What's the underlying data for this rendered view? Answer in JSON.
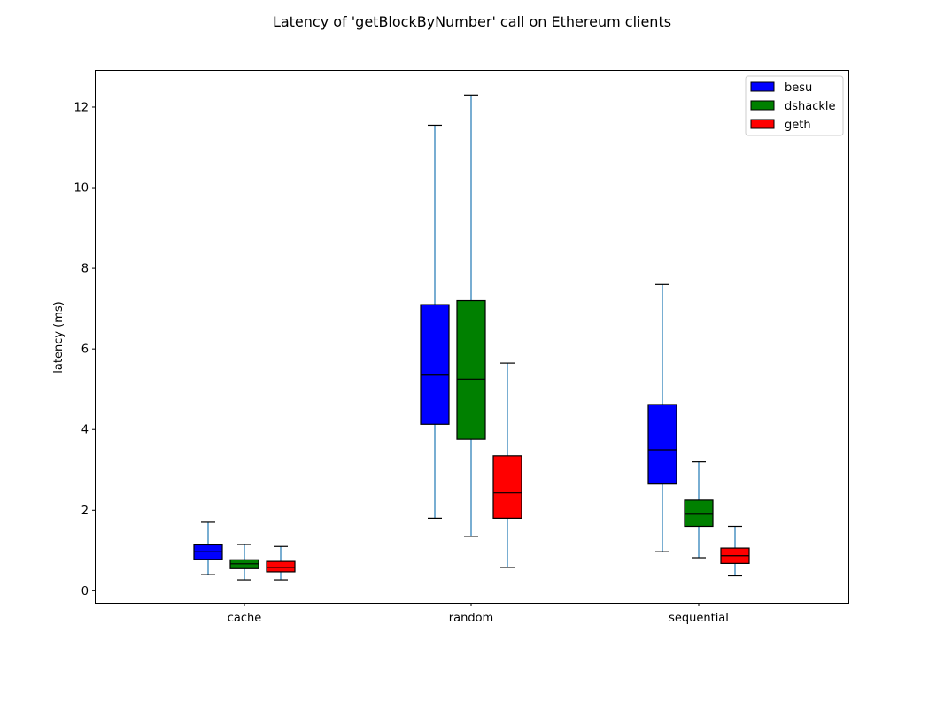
{
  "chart_data": {
    "type": "boxplot",
    "title": "Latency of 'getBlockByNumber' call on Ethereum clients",
    "xlabel": "",
    "ylabel": "latency (ms)",
    "ylim": [
      -0.3,
      12.9
    ],
    "yticks": [
      0,
      2,
      4,
      6,
      8,
      10,
      12
    ],
    "categories": [
      "cache",
      "random",
      "sequential"
    ],
    "grid": false,
    "legend_position": "top-right",
    "whisker_color": "#1f77b4",
    "series": [
      {
        "name": "besu",
        "color": "#0000ff",
        "boxes": [
          {
            "min": 0.4,
            "q1": 0.78,
            "median": 0.97,
            "q3": 1.14,
            "max": 1.7
          },
          {
            "min": 1.8,
            "q1": 4.13,
            "median": 5.35,
            "q3": 7.1,
            "max": 11.55
          },
          {
            "min": 0.97,
            "q1": 2.65,
            "median": 3.5,
            "q3": 4.62,
            "max": 7.6
          }
        ]
      },
      {
        "name": "dshackle",
        "color": "#008000",
        "boxes": [
          {
            "min": 0.27,
            "q1": 0.55,
            "median": 0.67,
            "q3": 0.77,
            "max": 1.15
          },
          {
            "min": 1.35,
            "q1": 3.76,
            "median": 5.25,
            "q3": 7.2,
            "max": 12.3
          },
          {
            "min": 0.82,
            "q1": 1.6,
            "median": 1.9,
            "q3": 2.25,
            "max": 3.2
          }
        ]
      },
      {
        "name": "geth",
        "color": "#ff0000",
        "boxes": [
          {
            "min": 0.27,
            "q1": 0.47,
            "median": 0.58,
            "q3": 0.73,
            "max": 1.1
          },
          {
            "min": 0.58,
            "q1": 1.8,
            "median": 2.43,
            "q3": 3.35,
            "max": 5.65
          },
          {
            "min": 0.37,
            "q1": 0.68,
            "median": 0.87,
            "q3": 1.06,
            "max": 1.6
          }
        ]
      }
    ]
  }
}
